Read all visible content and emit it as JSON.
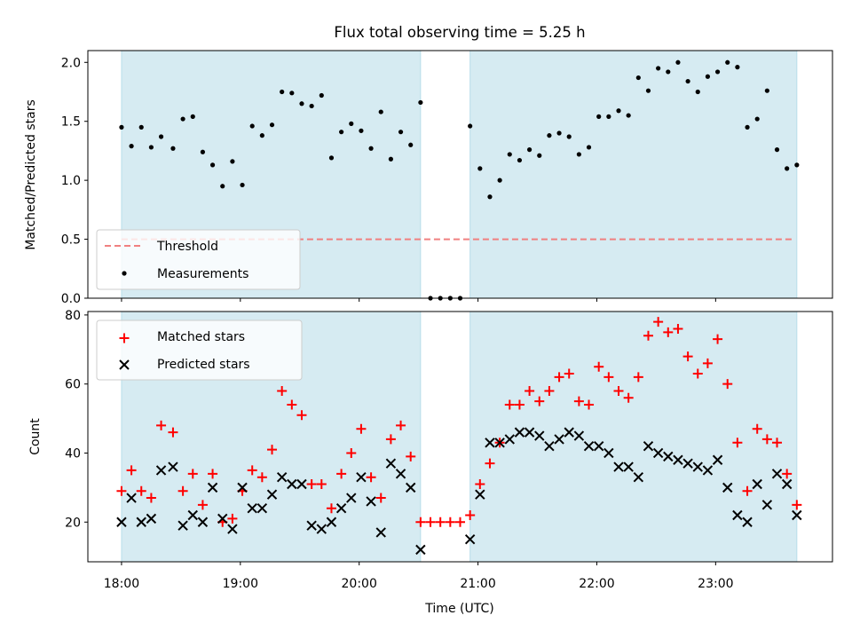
{
  "chart_data": [
    {
      "type": "scatter",
      "title": "Flux total observing time = 5.25 h",
      "xlabel": "",
      "ylabel": "Matched/Predicted stars",
      "xlim": [
        "17:43",
        "23:59"
      ],
      "ylim": [
        0,
        2.1
      ],
      "yticks": [
        "0.0",
        "0.5",
        "1.0",
        "1.5",
        "2.0"
      ],
      "xticks": [
        "18:00",
        "19:00",
        "20:00",
        "21:00",
        "22:00",
        "23:00"
      ],
      "grid": false,
      "legend": "lower-left",
      "shaded_intervals": [
        [
          "18:00",
          "20:31"
        ],
        [
          "20:56",
          "23:41"
        ]
      ],
      "threshold": {
        "name": "Threshold",
        "value": 0.5,
        "x_range": [
          "18:00",
          "23:39"
        ],
        "color": "#f08080"
      },
      "series": [
        {
          "name": "Measurements",
          "color": "#000000",
          "marker": "dot",
          "x": [
            "18:00",
            "18:05",
            "18:10",
            "18:15",
            "18:20",
            "18:26",
            "18:31",
            "18:36",
            "18:41",
            "18:46",
            "18:51",
            "18:56",
            "19:01",
            "19:06",
            "19:11",
            "19:16",
            "19:21",
            "19:26",
            "19:31",
            "19:36",
            "19:41",
            "19:46",
            "19:51",
            "19:56",
            "20:01",
            "20:06",
            "20:11",
            "20:16",
            "20:21",
            "20:26",
            "20:31",
            "20:36",
            "20:41",
            "20:46",
            "20:51",
            "20:56",
            "21:01",
            "21:06",
            "21:11",
            "21:16",
            "21:21",
            "21:26",
            "21:31",
            "21:36",
            "21:41",
            "21:46",
            "21:51",
            "21:56",
            "22:01",
            "22:06",
            "22:11",
            "22:16",
            "22:21",
            "22:26",
            "22:31",
            "22:36",
            "22:41",
            "22:46",
            "22:51",
            "22:56",
            "23:01",
            "23:06",
            "23:11",
            "23:16",
            "23:21",
            "23:26",
            "23:31",
            "23:36",
            "23:41"
          ],
          "y": [
            1.45,
            1.29,
            1.45,
            1.28,
            1.37,
            1.27,
            1.52,
            1.54,
            1.24,
            1.13,
            0.95,
            1.16,
            0.96,
            1.46,
            1.38,
            1.47,
            1.75,
            1.74,
            1.65,
            1.63,
            1.72,
            1.19,
            1.41,
            1.48,
            1.42,
            1.27,
            1.58,
            1.18,
            1.41,
            1.3,
            1.66,
            0.0,
            0.0,
            0.0,
            0.0,
            1.46,
            1.1,
            0.86,
            1.0,
            1.22,
            1.17,
            1.26,
            1.21,
            1.38,
            1.4,
            1.37,
            1.22,
            1.28,
            1.54,
            1.54,
            1.59,
            1.55,
            1.87,
            1.76,
            1.95,
            1.92,
            2.0,
            1.84,
            1.75,
            1.88,
            1.92,
            2.0,
            1.96,
            1.45,
            1.52,
            1.76,
            1.26,
            1.1,
            1.13
          ]
        }
      ]
    },
    {
      "type": "scatter",
      "title": "",
      "xlabel": "Time (UTC)",
      "ylabel": "Count",
      "xlim": [
        "17:43",
        "23:59"
      ],
      "ylim": [
        8.5,
        81
      ],
      "yticks": [
        "20",
        "40",
        "60",
        "80"
      ],
      "xticks": [
        "18:00",
        "19:00",
        "20:00",
        "21:00",
        "22:00",
        "23:00"
      ],
      "grid": false,
      "legend": "upper-left",
      "shaded_intervals": [
        [
          "18:00",
          "20:31"
        ],
        [
          "20:56",
          "23:41"
        ]
      ],
      "series": [
        {
          "name": "Matched stars",
          "color": "#ff0000",
          "marker": "plus",
          "x": [
            "18:00",
            "18:05",
            "18:10",
            "18:15",
            "18:20",
            "18:26",
            "18:31",
            "18:36",
            "18:41",
            "18:46",
            "18:51",
            "18:56",
            "19:01",
            "19:06",
            "19:11",
            "19:16",
            "19:21",
            "19:26",
            "19:31",
            "19:36",
            "19:41",
            "19:46",
            "19:51",
            "19:56",
            "20:01",
            "20:06",
            "20:11",
            "20:16",
            "20:21",
            "20:26",
            "20:31",
            "20:36",
            "20:41",
            "20:46",
            "20:51",
            "20:56",
            "21:01",
            "21:06",
            "21:11",
            "21:16",
            "21:21",
            "21:26",
            "21:31",
            "21:36",
            "21:41",
            "21:46",
            "21:51",
            "21:56",
            "22:01",
            "22:06",
            "22:11",
            "22:16",
            "22:21",
            "22:26",
            "22:31",
            "22:36",
            "22:41",
            "22:46",
            "22:51",
            "22:56",
            "23:01",
            "23:06",
            "23:11",
            "23:16",
            "23:21",
            "23:26",
            "23:31",
            "23:36",
            "23:41"
          ],
          "y": [
            29,
            35,
            29,
            27,
            48,
            46,
            29,
            34,
            25,
            34,
            20,
            21,
            29,
            35,
            33,
            41,
            58,
            54,
            51,
            31,
            31,
            24,
            34,
            40,
            47,
            33,
            27,
            44,
            48,
            39,
            20,
            20,
            20,
            20,
            20,
            22,
            31,
            37,
            43,
            54,
            54,
            58,
            55,
            58,
            62,
            63,
            55,
            54,
            65,
            62,
            58,
            56,
            62,
            74,
            78,
            75,
            76,
            68,
            63,
            66,
            73,
            60,
            43,
            29,
            47,
            44,
            43,
            34,
            25
          ]
        },
        {
          "name": "Predicted stars",
          "color": "#000000",
          "marker": "x",
          "x": [
            "18:00",
            "18:05",
            "18:10",
            "18:15",
            "18:20",
            "18:26",
            "18:31",
            "18:36",
            "18:41",
            "18:46",
            "18:51",
            "18:56",
            "19:01",
            "19:06",
            "19:11",
            "19:16",
            "19:21",
            "19:26",
            "19:31",
            "19:36",
            "19:41",
            "19:46",
            "19:51",
            "19:56",
            "20:01",
            "20:06",
            "20:11",
            "20:16",
            "20:21",
            "20:26",
            "20:31",
            "20:56",
            "21:01",
            "21:06",
            "21:11",
            "21:16",
            "21:21",
            "21:26",
            "21:31",
            "21:36",
            "21:41",
            "21:46",
            "21:51",
            "21:56",
            "22:01",
            "22:06",
            "22:11",
            "22:16",
            "22:21",
            "22:26",
            "22:31",
            "22:36",
            "22:41",
            "22:46",
            "22:51",
            "22:56",
            "23:01",
            "23:06",
            "23:11",
            "23:16",
            "23:21",
            "23:26",
            "23:31",
            "23:36",
            "23:41"
          ],
          "y": [
            20,
            27,
            20,
            21,
            35,
            36,
            19,
            22,
            20,
            30,
            21,
            18,
            30,
            24,
            24,
            28,
            33,
            31,
            31,
            19,
            18,
            20,
            24,
            27,
            33,
            26,
            17,
            37,
            34,
            30,
            12,
            15,
            28,
            43,
            43,
            44,
            46,
            46,
            45,
            42,
            44,
            46,
            45,
            42,
            42,
            40,
            36,
            36,
            33,
            42,
            40,
            39,
            38,
            37,
            36,
            35,
            38,
            30,
            22,
            20,
            31,
            25,
            34,
            31,
            22
          ]
        }
      ]
    }
  ]
}
